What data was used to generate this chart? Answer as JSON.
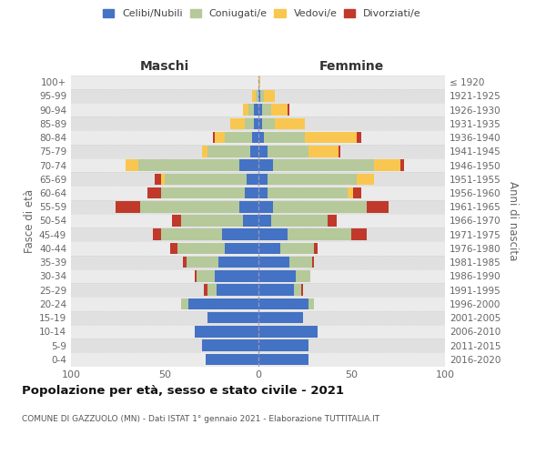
{
  "age_groups": [
    "0-4",
    "5-9",
    "10-14",
    "15-19",
    "20-24",
    "25-29",
    "30-34",
    "35-39",
    "40-44",
    "45-49",
    "50-54",
    "55-59",
    "60-64",
    "65-69",
    "70-74",
    "75-79",
    "80-84",
    "85-89",
    "90-94",
    "95-99",
    "100+"
  ],
  "birth_years": [
    "2016-2020",
    "2011-2015",
    "2006-2010",
    "2001-2005",
    "1996-2000",
    "1991-1995",
    "1986-1990",
    "1981-1985",
    "1976-1980",
    "1971-1975",
    "1966-1970",
    "1961-1965",
    "1956-1960",
    "1951-1955",
    "1946-1950",
    "1941-1945",
    "1936-1940",
    "1931-1935",
    "1926-1930",
    "1921-1925",
    "≤ 1920"
  ],
  "maschi_celibi": [
    28,
    30,
    34,
    27,
    37,
    22,
    23,
    21,
    18,
    19,
    8,
    10,
    7,
    6,
    10,
    4,
    3,
    2,
    2,
    0,
    0
  ],
  "maschi_coniugati": [
    0,
    0,
    0,
    0,
    4,
    5,
    10,
    17,
    25,
    33,
    33,
    53,
    45,
    44,
    54,
    23,
    15,
    5,
    3,
    1,
    0
  ],
  "maschi_vedovi": [
    0,
    0,
    0,
    0,
    0,
    0,
    0,
    0,
    0,
    0,
    0,
    0,
    0,
    2,
    7,
    3,
    5,
    8,
    3,
    2,
    0
  ],
  "maschi_divorziati": [
    0,
    0,
    0,
    0,
    0,
    2,
    1,
    2,
    4,
    4,
    5,
    13,
    7,
    3,
    0,
    0,
    1,
    0,
    0,
    0,
    0
  ],
  "femmine_celibi": [
    27,
    27,
    32,
    24,
    27,
    19,
    20,
    17,
    12,
    16,
    7,
    8,
    5,
    5,
    8,
    5,
    3,
    2,
    2,
    1,
    0
  ],
  "femmine_coniugati": [
    0,
    0,
    0,
    0,
    3,
    4,
    8,
    12,
    18,
    34,
    30,
    50,
    43,
    48,
    54,
    22,
    22,
    7,
    5,
    2,
    0
  ],
  "femmine_vedovi": [
    0,
    0,
    0,
    0,
    0,
    0,
    0,
    0,
    0,
    0,
    0,
    0,
    3,
    9,
    14,
    16,
    28,
    16,
    9,
    6,
    1
  ],
  "femmine_divorziati": [
    0,
    0,
    0,
    0,
    0,
    1,
    0,
    1,
    2,
    8,
    5,
    12,
    4,
    0,
    2,
    1,
    2,
    0,
    1,
    0,
    0
  ],
  "color_celibi": "#4472c4",
  "color_coniugati": "#b5c99a",
  "color_vedovi": "#f9c74f",
  "color_divorziati": "#c0392b",
  "title": "Popolazione per età, sesso e stato civile - 2021",
  "subtitle": "COMUNE DI GAZZUOLO (MN) - Dati ISTAT 1° gennaio 2021 - Elaborazione TUTTITALIA.IT",
  "label_maschi": "Maschi",
  "label_femmine": "Femmine",
  "ylabel_left": "Fasce di età",
  "ylabel_right": "Anni di nascita",
  "xlim": 100,
  "xticks": [
    -100,
    -50,
    0,
    50,
    100
  ],
  "xticklabels": [
    "100",
    "50",
    "0",
    "50",
    "100"
  ]
}
